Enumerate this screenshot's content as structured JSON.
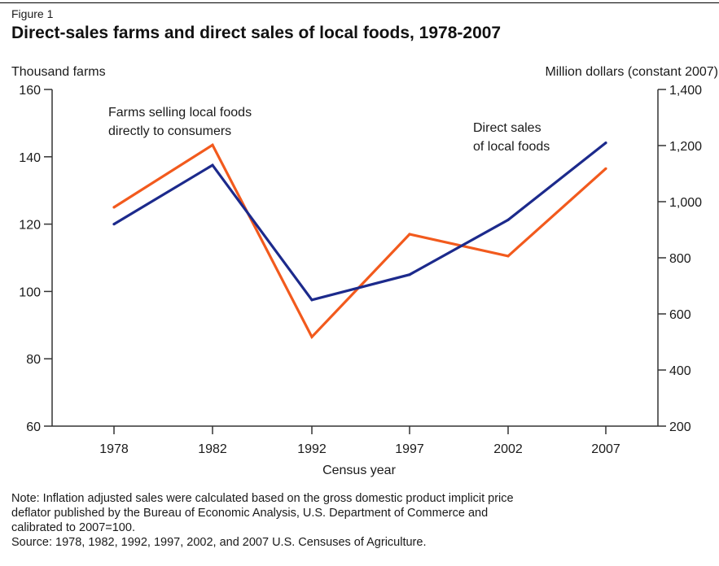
{
  "figure_label": "Figure 1",
  "chart_data": {
    "type": "line",
    "title": "Direct-sales farms and direct sales of local foods, 1978-2007",
    "xlabel": "Census year",
    "ylabel_left": "Thousand farms",
    "ylabel_right": "Million dollars (constant 2007)",
    "categories": [
      "1978",
      "1982",
      "1992",
      "1997",
      "2002",
      "2007"
    ],
    "ylim_left": [
      60,
      160
    ],
    "yticks_left": [
      "60",
      "80",
      "100",
      "120",
      "140",
      "160"
    ],
    "ylim_right": [
      200,
      1400
    ],
    "yticks_right": [
      "200",
      "400",
      "600",
      "800",
      "1,000",
      "1,200",
      "1,400"
    ],
    "grid": false,
    "series": [
      {
        "name": "Farms selling local foods directly to consumers",
        "axis": "left",
        "color": "#f25a1d",
        "values": [
          125,
          143.5,
          86.5,
          117,
          110.5,
          136.5
        ],
        "label_lines": [
          "Farms selling local foods",
          "directly to consumers"
        ]
      },
      {
        "name": "Direct sales of local foods",
        "axis": "right",
        "color": "#1c2a8c",
        "values": [
          920,
          1130,
          650,
          740,
          935,
          1210
        ],
        "label_lines": [
          "Direct sales",
          "of local foods"
        ]
      }
    ]
  },
  "note_lines": [
    "Note: Inflation adjusted sales were calculated based on the gross domestic product  implicit price",
    "deflator published by the Bureau of Economic Analysis, U.S. Department of Commerce and",
    "calibrated to 2007=100.",
    "Source: 1978, 1982, 1992, 1997, 2002, and 2007 U.S. Censuses of Agriculture."
  ]
}
